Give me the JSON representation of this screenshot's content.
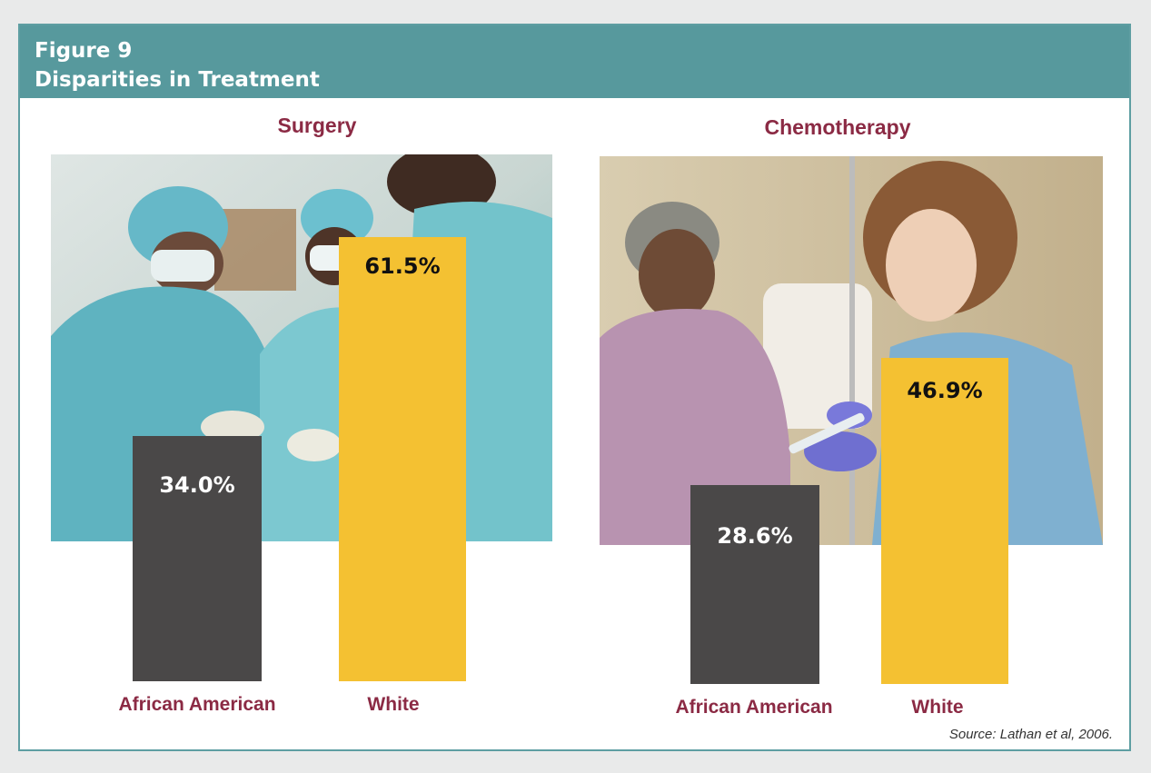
{
  "figure": {
    "number_label": "Figure 9",
    "title": "Disparities in Treatment",
    "source": "Source: Lathan et al, 2006."
  },
  "colors": {
    "header_bg": "#57999d",
    "frame_border": "#5e9ea2",
    "title_text": "#8b2a44",
    "african_american_bar": "#4a4848",
    "white_bar": "#f4c132"
  },
  "images": {
    "surgery_photo": "surgeons-in-operating-room-photo",
    "chemotherapy_photo": "nurse-administering-chemotherapy-photo"
  },
  "chart_data": [
    {
      "type": "bar",
      "title": "Surgery",
      "categories": [
        "African American",
        "White"
      ],
      "values": [
        34.0,
        61.5
      ],
      "value_labels": [
        "34.0%",
        "61.5%"
      ],
      "unit": "%",
      "xlabel": "",
      "ylabel": "",
      "grid": false,
      "legend": "none"
    },
    {
      "type": "bar",
      "title": "Chemotherapy",
      "categories": [
        "African American",
        "White"
      ],
      "values": [
        28.6,
        46.9
      ],
      "value_labels": [
        "28.6%",
        "46.9%"
      ],
      "unit": "%",
      "xlabel": "",
      "ylabel": "",
      "grid": false,
      "legend": "none"
    }
  ]
}
